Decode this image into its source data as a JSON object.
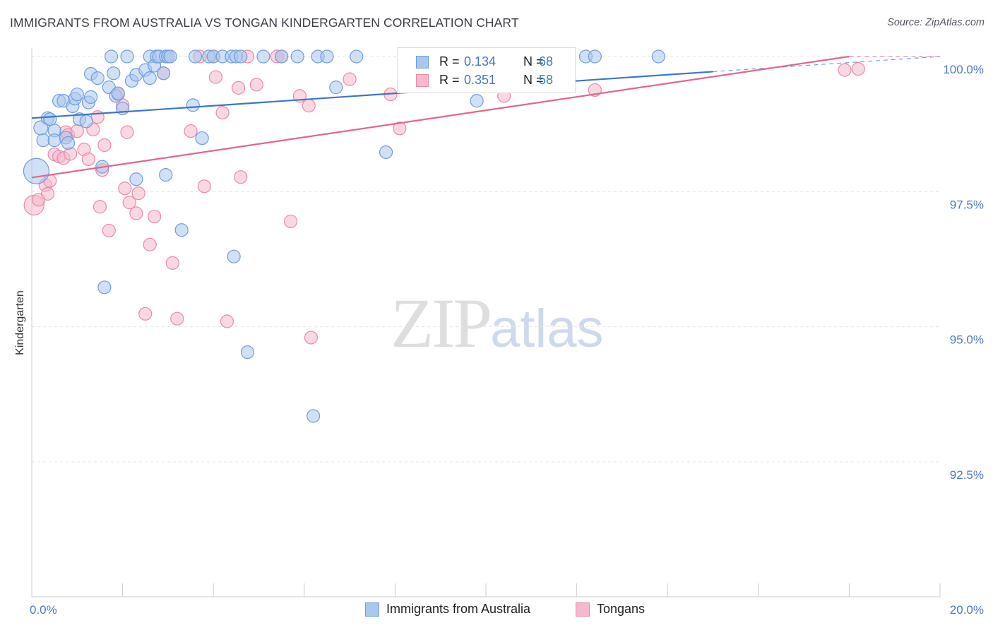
{
  "title": "IMMIGRANTS FROM AUSTRALIA VS TONGAN KINDERGARTEN CORRELATION CHART",
  "source": "Source: ZipAtlas.com",
  "watermark": {
    "zip": "ZIP",
    "atlas": "atlas"
  },
  "colors": {
    "blue": "#3d75c9",
    "blue_fill": "#aac7ee",
    "pink": "#e3658f",
    "pink_fill": "#f6b8cb",
    "grid": "#e4e4e4",
    "tick_label": "#4a79c6"
  },
  "legend": {
    "rows": [
      {
        "r_label": "R =",
        "r_value": "0.134",
        "n_label": "N =",
        "n_value": "68"
      },
      {
        "r_label": "R =",
        "r_value": "0.351",
        "n_label": "N =",
        "n_value": "58"
      }
    ]
  },
  "bottom_legend": [
    "Immigrants from Australia",
    "Tongans"
  ],
  "chart_data": {
    "type": "scatter",
    "title": "IMMIGRANTS FROM AUSTRALIA VS TONGAN KINDERGARTEN CORRELATION CHART",
    "xlabel": "",
    "ylabel": "Kindergarten",
    "xlim": [
      0,
      20
    ],
    "ylim": [
      90.2,
      100.2
    ],
    "x_tick_labels": [
      "0.0%",
      "20.0%"
    ],
    "y_ticks": [
      92.5,
      95.0,
      97.5,
      100.0
    ],
    "y_tick_labels": [
      "92.5%",
      "95.0%",
      "97.5%",
      "100.0%"
    ],
    "grid": true,
    "series": [
      {
        "name": "Immigrants from Australia",
        "r": 0.134,
        "n": 68,
        "trend": {
          "x0": 0.0,
          "y0": 98.86,
          "x1": 15.0,
          "y1": 99.72,
          "dash_to_x": 20.0,
          "dash_to_y": 100.0
        },
        "points": [
          [
            0.1,
            97.88,
            18
          ],
          [
            0.2,
            98.68,
            10
          ],
          [
            0.25,
            98.45,
            9
          ],
          [
            0.35,
            98.86,
            9
          ],
          [
            0.4,
            98.84,
            9
          ],
          [
            0.5,
            98.63,
            9
          ],
          [
            0.5,
            98.45,
            9
          ],
          [
            0.6,
            99.18,
            9
          ],
          [
            0.7,
            99.18,
            9
          ],
          [
            0.75,
            98.5,
            9
          ],
          [
            0.8,
            98.4,
            9
          ],
          [
            0.9,
            99.08,
            9
          ],
          [
            0.95,
            99.22,
            9
          ],
          [
            1.0,
            99.3,
            9
          ],
          [
            1.05,
            98.84,
            9
          ],
          [
            1.2,
            98.8,
            9
          ],
          [
            1.25,
            99.15,
            9
          ],
          [
            1.3,
            99.25,
            9
          ],
          [
            1.3,
            99.68,
            9
          ],
          [
            1.45,
            99.6,
            9
          ],
          [
            1.55,
            97.96,
            9
          ],
          [
            1.6,
            95.73,
            9
          ],
          [
            1.7,
            99.43,
            9
          ],
          [
            1.75,
            100.0,
            9
          ],
          [
            1.8,
            99.69,
            9
          ],
          [
            1.85,
            99.27,
            9
          ],
          [
            1.9,
            99.32,
            9
          ],
          [
            2.0,
            99.04,
            9
          ],
          [
            2.1,
            100.0,
            9
          ],
          [
            2.2,
            99.55,
            9
          ],
          [
            2.3,
            99.66,
            9
          ],
          [
            2.3,
            97.73,
            9
          ],
          [
            2.5,
            99.75,
            9
          ],
          [
            2.6,
            99.6,
            9
          ],
          [
            2.6,
            100.0,
            9
          ],
          [
            2.7,
            99.83,
            9
          ],
          [
            2.75,
            100.0,
            9
          ],
          [
            2.8,
            100.0,
            9
          ],
          [
            2.9,
            99.69,
            9
          ],
          [
            2.95,
            100.0,
            9
          ],
          [
            2.95,
            97.81,
            9
          ],
          [
            3.0,
            100.0,
            9
          ],
          [
            3.05,
            100.0,
            9
          ],
          [
            3.3,
            96.79,
            9
          ],
          [
            3.55,
            99.1,
            9
          ],
          [
            3.6,
            100.0,
            9
          ],
          [
            3.75,
            98.49,
            9
          ],
          [
            3.9,
            100.0,
            9
          ],
          [
            4.0,
            100.0,
            9
          ],
          [
            4.2,
            100.0,
            9
          ],
          [
            4.4,
            100.0,
            9
          ],
          [
            4.45,
            96.3,
            9
          ],
          [
            4.5,
            100.0,
            9
          ],
          [
            4.6,
            100.0,
            9
          ],
          [
            4.75,
            94.53,
            9
          ],
          [
            5.1,
            100.0,
            9
          ],
          [
            5.5,
            100.0,
            9
          ],
          [
            5.85,
            100.0,
            9
          ],
          [
            6.2,
            93.35,
            9
          ],
          [
            6.3,
            100.0,
            9
          ],
          [
            6.5,
            100.0,
            9
          ],
          [
            6.7,
            99.43,
            9
          ],
          [
            7.15,
            100.0,
            9
          ],
          [
            7.8,
            98.23,
            9
          ],
          [
            9.8,
            99.18,
            9
          ],
          [
            12.2,
            100.0,
            9
          ],
          [
            12.4,
            100.0,
            9
          ],
          [
            13.8,
            100.0,
            9
          ]
        ]
      },
      {
        "name": "Tongans",
        "r": 0.351,
        "n": 58,
        "trend": {
          "x0": 0.0,
          "y0": 97.76,
          "x1": 18.0,
          "y1": 100.0,
          "dash_to_x": 20.0,
          "dash_to_y": 100.0
        },
        "points": [
          [
            0.05,
            97.25,
            14
          ],
          [
            0.15,
            97.35,
            9
          ],
          [
            0.3,
            97.62,
            9
          ],
          [
            0.35,
            97.46,
            9
          ],
          [
            0.4,
            97.7,
            9
          ],
          [
            0.5,
            98.19,
            9
          ],
          [
            0.6,
            98.15,
            9
          ],
          [
            0.7,
            98.12,
            9
          ],
          [
            0.75,
            98.6,
            9
          ],
          [
            0.8,
            98.55,
            9
          ],
          [
            0.85,
            98.2,
            9
          ],
          [
            1.0,
            98.62,
            9
          ],
          [
            1.15,
            98.28,
            9
          ],
          [
            1.25,
            98.1,
            9
          ],
          [
            1.35,
            98.65,
            9
          ],
          [
            1.45,
            98.88,
            9
          ],
          [
            1.5,
            97.22,
            9
          ],
          [
            1.55,
            97.9,
            9
          ],
          [
            1.6,
            98.36,
            9
          ],
          [
            1.7,
            96.78,
            9
          ],
          [
            1.9,
            99.3,
            9
          ],
          [
            2.0,
            99.1,
            9
          ],
          [
            2.05,
            97.56,
            9
          ],
          [
            2.1,
            98.6,
            9
          ],
          [
            2.15,
            97.3,
            9
          ],
          [
            2.3,
            97.1,
            9
          ],
          [
            2.35,
            97.47,
            9
          ],
          [
            2.5,
            95.24,
            9
          ],
          [
            2.6,
            96.52,
            9
          ],
          [
            2.7,
            97.04,
            9
          ],
          [
            2.9,
            99.69,
            9
          ],
          [
            3.1,
            96.18,
            9
          ],
          [
            3.2,
            95.15,
            9
          ],
          [
            3.5,
            98.62,
            9
          ],
          [
            3.7,
            100.0,
            9
          ],
          [
            3.8,
            97.6,
            9
          ],
          [
            4.0,
            100.0,
            9
          ],
          [
            4.05,
            99.62,
            9
          ],
          [
            4.2,
            98.96,
            9
          ],
          [
            4.3,
            95.1,
            9
          ],
          [
            4.55,
            99.42,
            9
          ],
          [
            4.6,
            97.77,
            9
          ],
          [
            4.75,
            100.0,
            9
          ],
          [
            4.95,
            99.48,
            9
          ],
          [
            5.4,
            100.0,
            9
          ],
          [
            5.5,
            100.0,
            9
          ],
          [
            5.7,
            96.95,
            9
          ],
          [
            5.9,
            99.27,
            9
          ],
          [
            6.1,
            99.09,
            9
          ],
          [
            6.15,
            94.8,
            9
          ],
          [
            7.0,
            99.58,
            9
          ],
          [
            7.9,
            99.3,
            9
          ],
          [
            8.1,
            98.67,
            9
          ],
          [
            8.6,
            99.55,
            9
          ],
          [
            10.4,
            99.27,
            9
          ],
          [
            12.4,
            99.38,
            9
          ],
          [
            17.9,
            99.75,
            9
          ],
          [
            18.2,
            99.77,
            9
          ]
        ]
      }
    ]
  }
}
